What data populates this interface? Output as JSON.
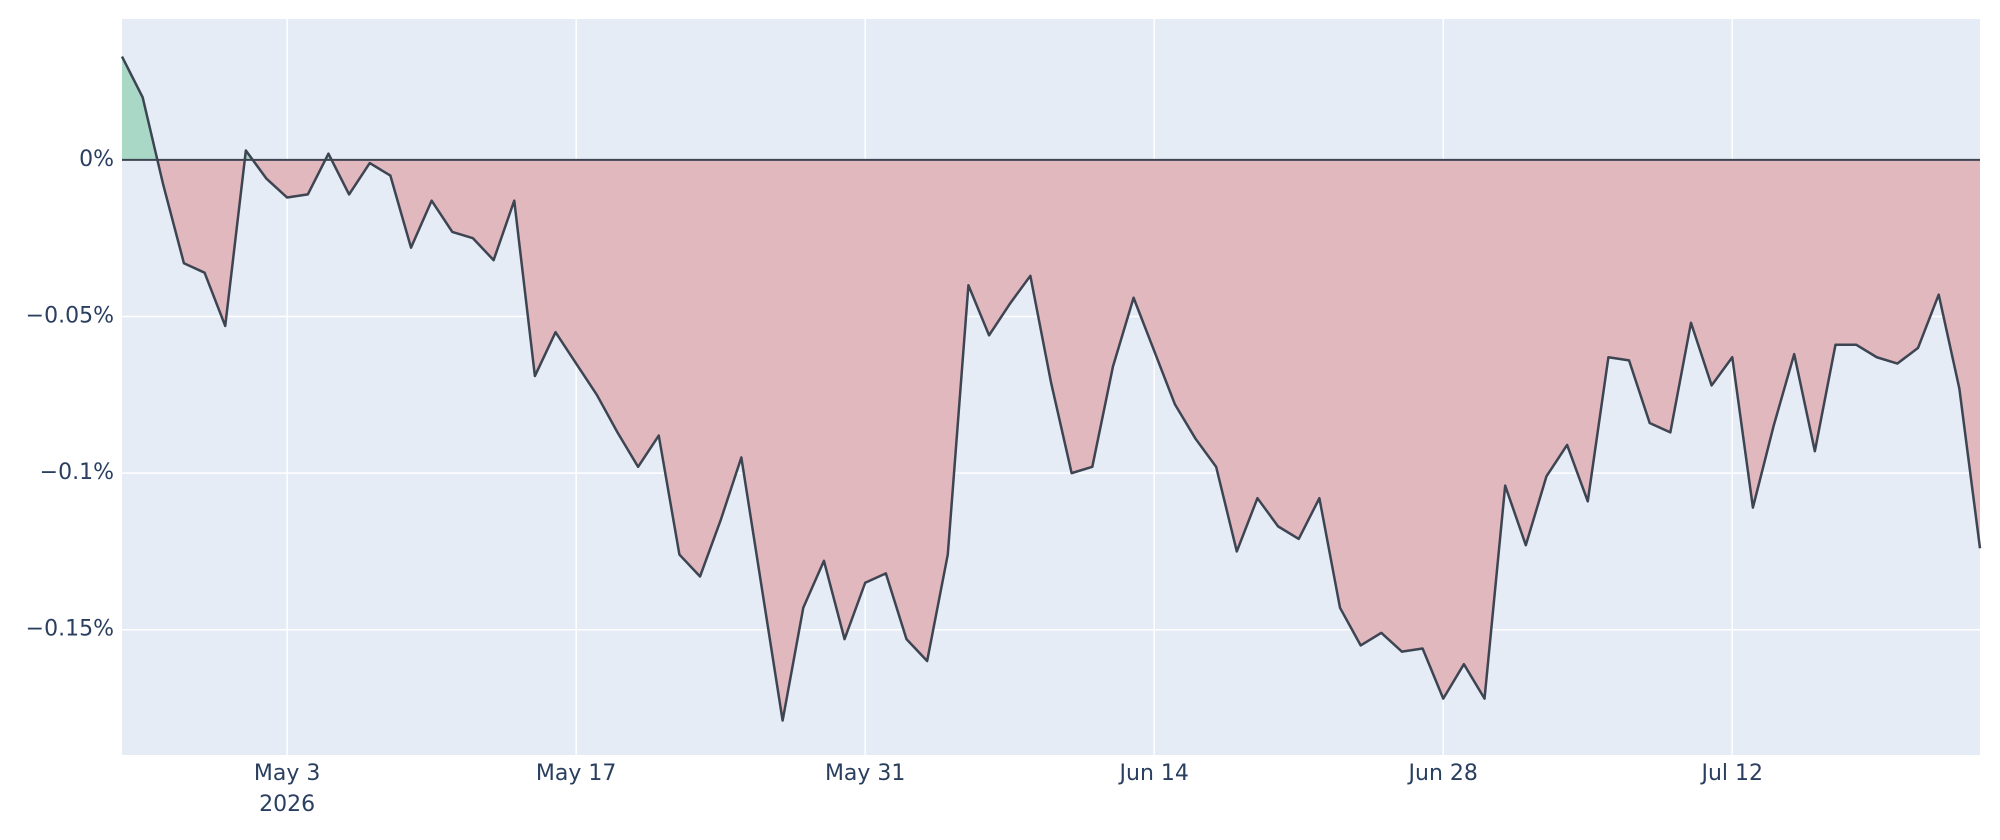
{
  "chart_data": {
    "type": "area",
    "x": [
      "2026-04-25",
      "2026-04-26",
      "2026-04-27",
      "2026-04-28",
      "2026-04-29",
      "2026-04-30",
      "2026-05-01",
      "2026-05-02",
      "2026-05-03",
      "2026-05-04",
      "2026-05-05",
      "2026-05-06",
      "2026-05-07",
      "2026-05-08",
      "2026-05-09",
      "2026-05-10",
      "2026-05-11",
      "2026-05-12",
      "2026-05-13",
      "2026-05-14",
      "2026-05-15",
      "2026-05-16",
      "2026-05-17",
      "2026-05-18",
      "2026-05-19",
      "2026-05-20",
      "2026-05-21",
      "2026-05-22",
      "2026-05-23",
      "2026-05-24",
      "2026-05-25",
      "2026-05-26",
      "2026-05-27",
      "2026-05-28",
      "2026-05-29",
      "2026-05-30",
      "2026-05-31",
      "2026-06-01",
      "2026-06-02",
      "2026-06-03",
      "2026-06-04",
      "2026-06-05",
      "2026-06-06",
      "2026-06-07",
      "2026-06-08",
      "2026-06-09",
      "2026-06-10",
      "2026-06-11",
      "2026-06-12",
      "2026-06-13",
      "2026-06-14",
      "2026-06-15",
      "2026-06-16",
      "2026-06-17",
      "2026-06-18",
      "2026-06-19",
      "2026-06-20",
      "2026-06-21",
      "2026-06-22",
      "2026-06-23",
      "2026-06-24",
      "2026-06-25",
      "2026-06-26",
      "2026-06-27",
      "2026-06-28",
      "2026-06-29",
      "2026-06-30",
      "2026-07-01",
      "2026-07-02",
      "2026-07-03",
      "2026-07-04",
      "2026-07-05",
      "2026-07-06",
      "2026-07-07",
      "2026-07-08",
      "2026-07-09",
      "2026-07-10",
      "2026-07-11",
      "2026-07-12",
      "2026-07-13",
      "2026-07-14",
      "2026-07-15",
      "2026-07-16",
      "2026-07-17",
      "2026-07-18",
      "2026-07-19",
      "2026-07-20",
      "2026-07-21",
      "2026-07-22",
      "2026-07-23",
      "2026-07-24"
    ],
    "values": [
      0.033,
      0.02,
      -0.008,
      -0.033,
      -0.036,
      -0.053,
      0.003,
      -0.006,
      -0.012,
      -0.011,
      0.002,
      -0.011,
      -0.001,
      -0.005,
      -0.028,
      -0.013,
      -0.023,
      -0.025,
      -0.032,
      -0.013,
      -0.069,
      -0.055,
      -0.065,
      -0.075,
      -0.087,
      -0.098,
      -0.088,
      -0.126,
      -0.133,
      -0.115,
      -0.095,
      -0.137,
      -0.179,
      -0.143,
      -0.128,
      -0.153,
      -0.135,
      -0.132,
      -0.153,
      -0.16,
      -0.126,
      -0.04,
      -0.056,
      -0.046,
      -0.037,
      -0.071,
      -0.1,
      -0.098,
      -0.066,
      -0.044,
      -0.061,
      -0.078,
      -0.089,
      -0.098,
      -0.125,
      -0.108,
      -0.117,
      -0.121,
      -0.108,
      -0.143,
      -0.155,
      -0.151,
      -0.157,
      -0.156,
      -0.172,
      -0.161,
      -0.172,
      -0.104,
      -0.123,
      -0.101,
      -0.091,
      -0.109,
      -0.063,
      -0.064,
      -0.084,
      -0.087,
      -0.052,
      -0.072,
      -0.063,
      -0.111,
      -0.085,
      -0.062,
      -0.093,
      -0.059,
      -0.059,
      -0.063,
      -0.065,
      -0.06,
      -0.043,
      -0.073,
      -0.124
    ],
    "color": "#3d4452",
    "positive_fill": "#a9d9c6",
    "negative_fill": "#e2b8bf",
    "xlim": [
      "2026-04-25",
      "2026-07-24"
    ],
    "xticks": [
      {
        "value": "2026-05-03",
        "label": "May 3"
      },
      {
        "value": "2026-05-17",
        "label": "May 17"
      },
      {
        "value": "2026-05-31",
        "label": "May 31"
      },
      {
        "value": "2026-06-14",
        "label": "Jun 14"
      },
      {
        "value": "2026-06-28",
        "label": "Jun 28"
      },
      {
        "value": "2026-07-12",
        "label": "Jul 12"
      }
    ],
    "xtick_year": "2026",
    "ylim": [
      -0.19,
      0.045
    ],
    "yticks": [
      {
        "value": 0,
        "label": "0%"
      },
      {
        "value": -0.05,
        "label": "−0.05%"
      },
      {
        "value": -0.1,
        "label": "−0.1%"
      },
      {
        "value": -0.15,
        "label": "−0.15%"
      }
    ],
    "grid": true,
    "zeroline": true
  }
}
